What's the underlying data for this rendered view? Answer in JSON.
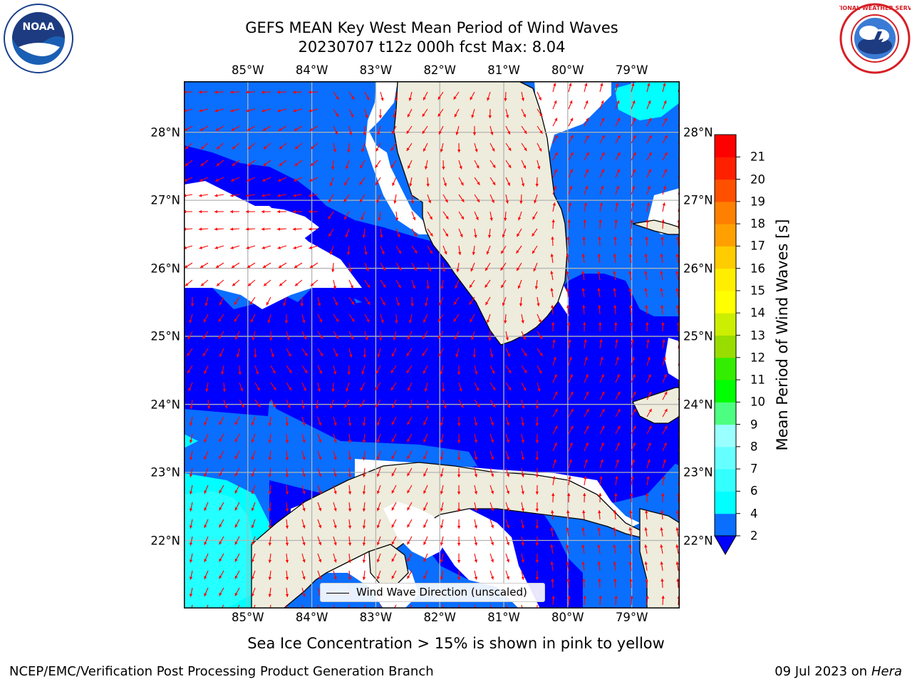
{
  "header": {
    "title_line1": "GEFS MEAN Key West Mean Period of Wind Waves",
    "title_line2": "20230707 t12z 000h fcst   Max: 8.04"
  },
  "logos": {
    "left": {
      "name": "noaa-logo",
      "text": "NOAA",
      "ring_text": "NATIONAL OCEANIC AND ATMOSPHERIC ADMINISTRATION · U.S. DEPARTMENT OF COMMERCE"
    },
    "right": {
      "name": "nws-logo",
      "ring_text": "NATIONAL WEATHER SERVICE"
    }
  },
  "map": {
    "lon_labels": [
      "85°W",
      "84°W",
      "83°W",
      "82°W",
      "81°W",
      "80°W",
      "79°W"
    ],
    "lat_labels": [
      "28°N",
      "27°N",
      "26°N",
      "25°N",
      "24°N",
      "23°N",
      "22°N"
    ],
    "extent": {
      "lon_min": -86.0,
      "lon_max": -78.25,
      "lat_min": 21.0,
      "lat_max": 28.75
    },
    "land_color": "#eeecdc",
    "arrow_color": "#ff0000",
    "legend_label": "Wind Wave Direction (unscaled)"
  },
  "colorbar": {
    "label": "Mean Period of Wind Waves [s]",
    "ticks": [
      "2",
      "4",
      "6",
      "7",
      "8",
      "9",
      "10",
      "11",
      "12",
      "13",
      "14",
      "15",
      "16",
      "17",
      "18",
      "19",
      "20",
      "21"
    ],
    "colors": [
      "#0000ff",
      "#0a6eff",
      "#00ffff",
      "#33ffff",
      "#66ffff",
      "#99ffff",
      "#4dff80",
      "#00ff00",
      "#33ee00",
      "#99dd00",
      "#ccee00",
      "#ffff00",
      "#ffee00",
      "#ffcc00",
      "#ffa000",
      "#ff8000",
      "#ff5000",
      "#ff2000",
      "#ff0000"
    ]
  },
  "caption": "Sea Ice Concentration > 15% is shown in pink to yellow",
  "footer": {
    "left": "NCEP/EMC/Verification Post Processing Product Generation Branch",
    "date": "09 Jul 2023 on",
    "host": "Hera"
  }
}
